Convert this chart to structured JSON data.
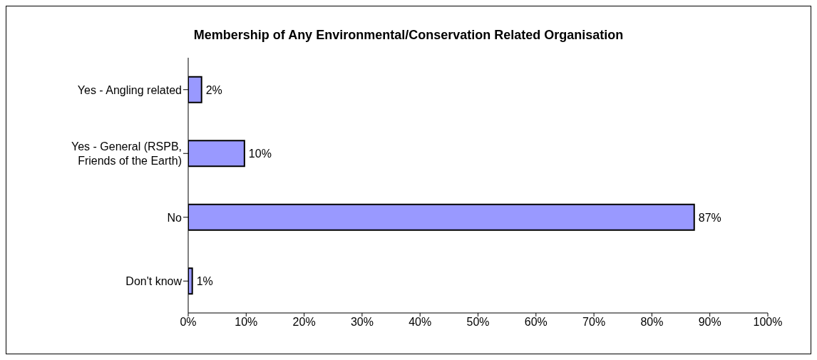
{
  "chart_data": {
    "type": "bar",
    "orientation": "horizontal",
    "title": "Membership of Any Environmental/Conservation Related Organisation",
    "categories": [
      "Yes - Angling related",
      "Yes - General (RSPB, Friends of the Earth)",
      "No",
      "Don't know"
    ],
    "values": [
      2.3,
      9.7,
      87.3,
      0.7
    ],
    "value_labels": [
      "2%",
      "10%",
      "87%",
      "1%"
    ],
    "color": "#9999ff",
    "xlim": [
      0,
      100
    ],
    "xticks": [
      {
        "value": 0,
        "label": "0%"
      },
      {
        "value": 10,
        "label": "10%"
      },
      {
        "value": 20,
        "label": "20%"
      },
      {
        "value": 30,
        "label": "30%"
      },
      {
        "value": 40,
        "label": "40%"
      },
      {
        "value": 50,
        "label": "50%"
      },
      {
        "value": 60,
        "label": "60%"
      },
      {
        "value": 70,
        "label": "70%"
      },
      {
        "value": 80,
        "label": "80%"
      },
      {
        "value": 90,
        "label": "90%"
      },
      {
        "value": 100,
        "label": "100%"
      }
    ],
    "grid": false,
    "legend": false
  }
}
